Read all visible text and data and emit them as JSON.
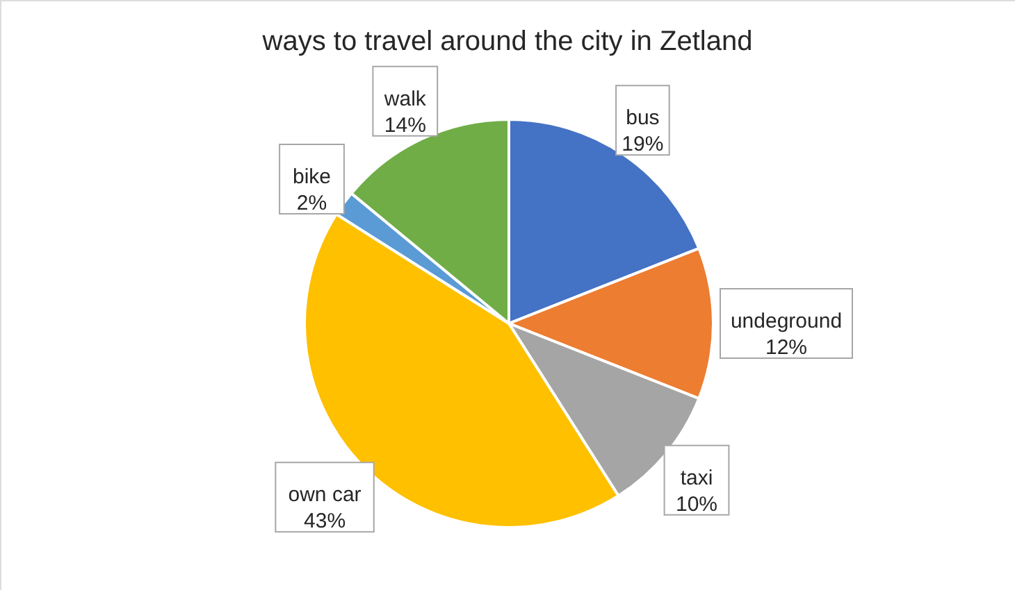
{
  "chart_data": {
    "type": "pie",
    "title": "ways to travel around the city in Zetland",
    "categories": [
      "bus",
      "undeground",
      "taxi",
      "own car",
      "bike",
      "walk"
    ],
    "values": [
      19,
      12,
      10,
      43,
      2,
      14
    ],
    "colors": [
      "#4472c4",
      "#ed7d31",
      "#a5a5a5",
      "#ffc000",
      "#5b9bd5",
      "#70ad47"
    ],
    "value_labels": [
      "19%",
      "12%",
      "10%",
      "43%",
      "2%",
      "14%"
    ]
  }
}
